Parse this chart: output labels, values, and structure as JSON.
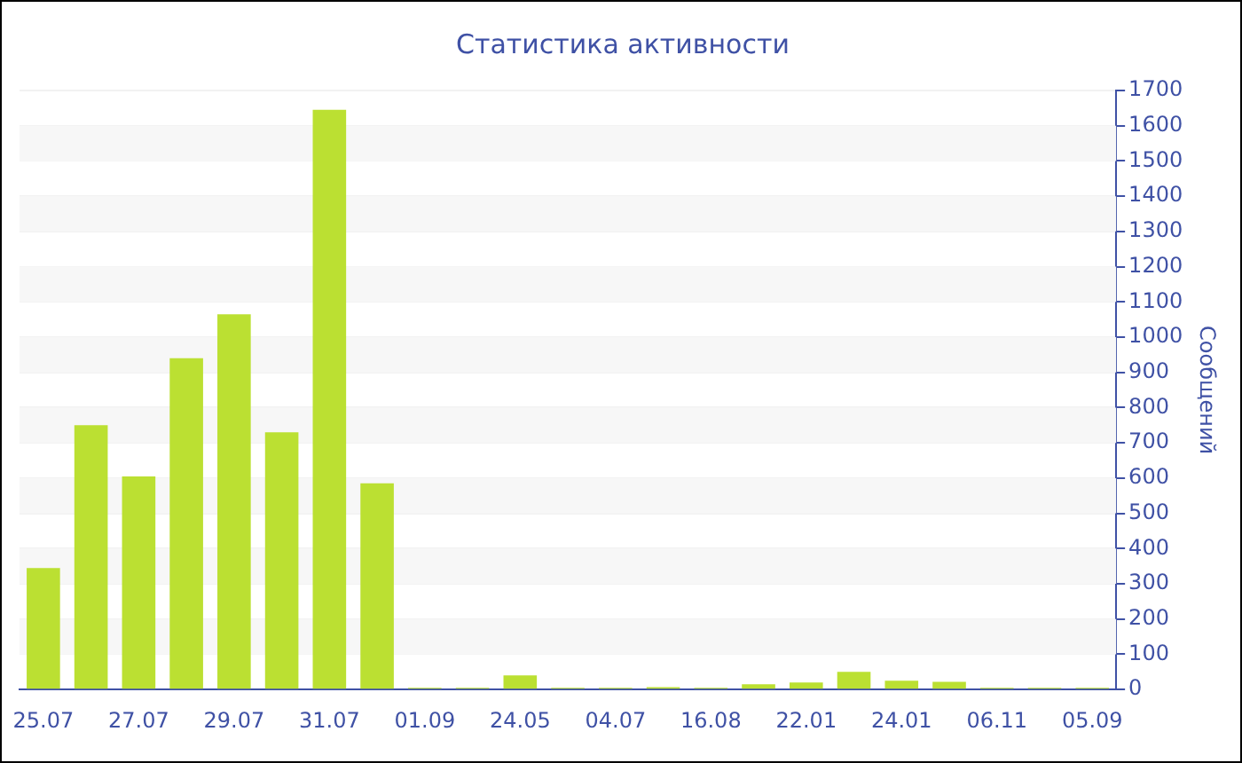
{
  "chart_data": {
    "type": "bar",
    "title": "Статистика активности",
    "ylabel": "Сообщений",
    "categories": [
      "25.07",
      null,
      "27.07",
      null,
      "29.07",
      null,
      "31.07",
      null,
      "01.09",
      null,
      "24.05",
      null,
      "04.07",
      null,
      "16.08",
      null,
      "22.01",
      null,
      "24.01",
      null,
      "06.11",
      null,
      "05.09"
    ],
    "values": [
      345,
      750,
      605,
      940,
      1065,
      730,
      1645,
      585,
      5,
      5,
      40,
      5,
      5,
      7,
      5,
      15,
      20,
      50,
      25,
      22,
      5,
      5,
      5
    ],
    "color": "#bbe032",
    "ylim": [
      0,
      1700
    ],
    "yticks": [
      0,
      100,
      200,
      300,
      400,
      500,
      600,
      700,
      800,
      900,
      1000,
      1100,
      1200,
      1300,
      1400,
      1500,
      1600,
      1700
    ],
    "grid": "y",
    "legend": false
  }
}
